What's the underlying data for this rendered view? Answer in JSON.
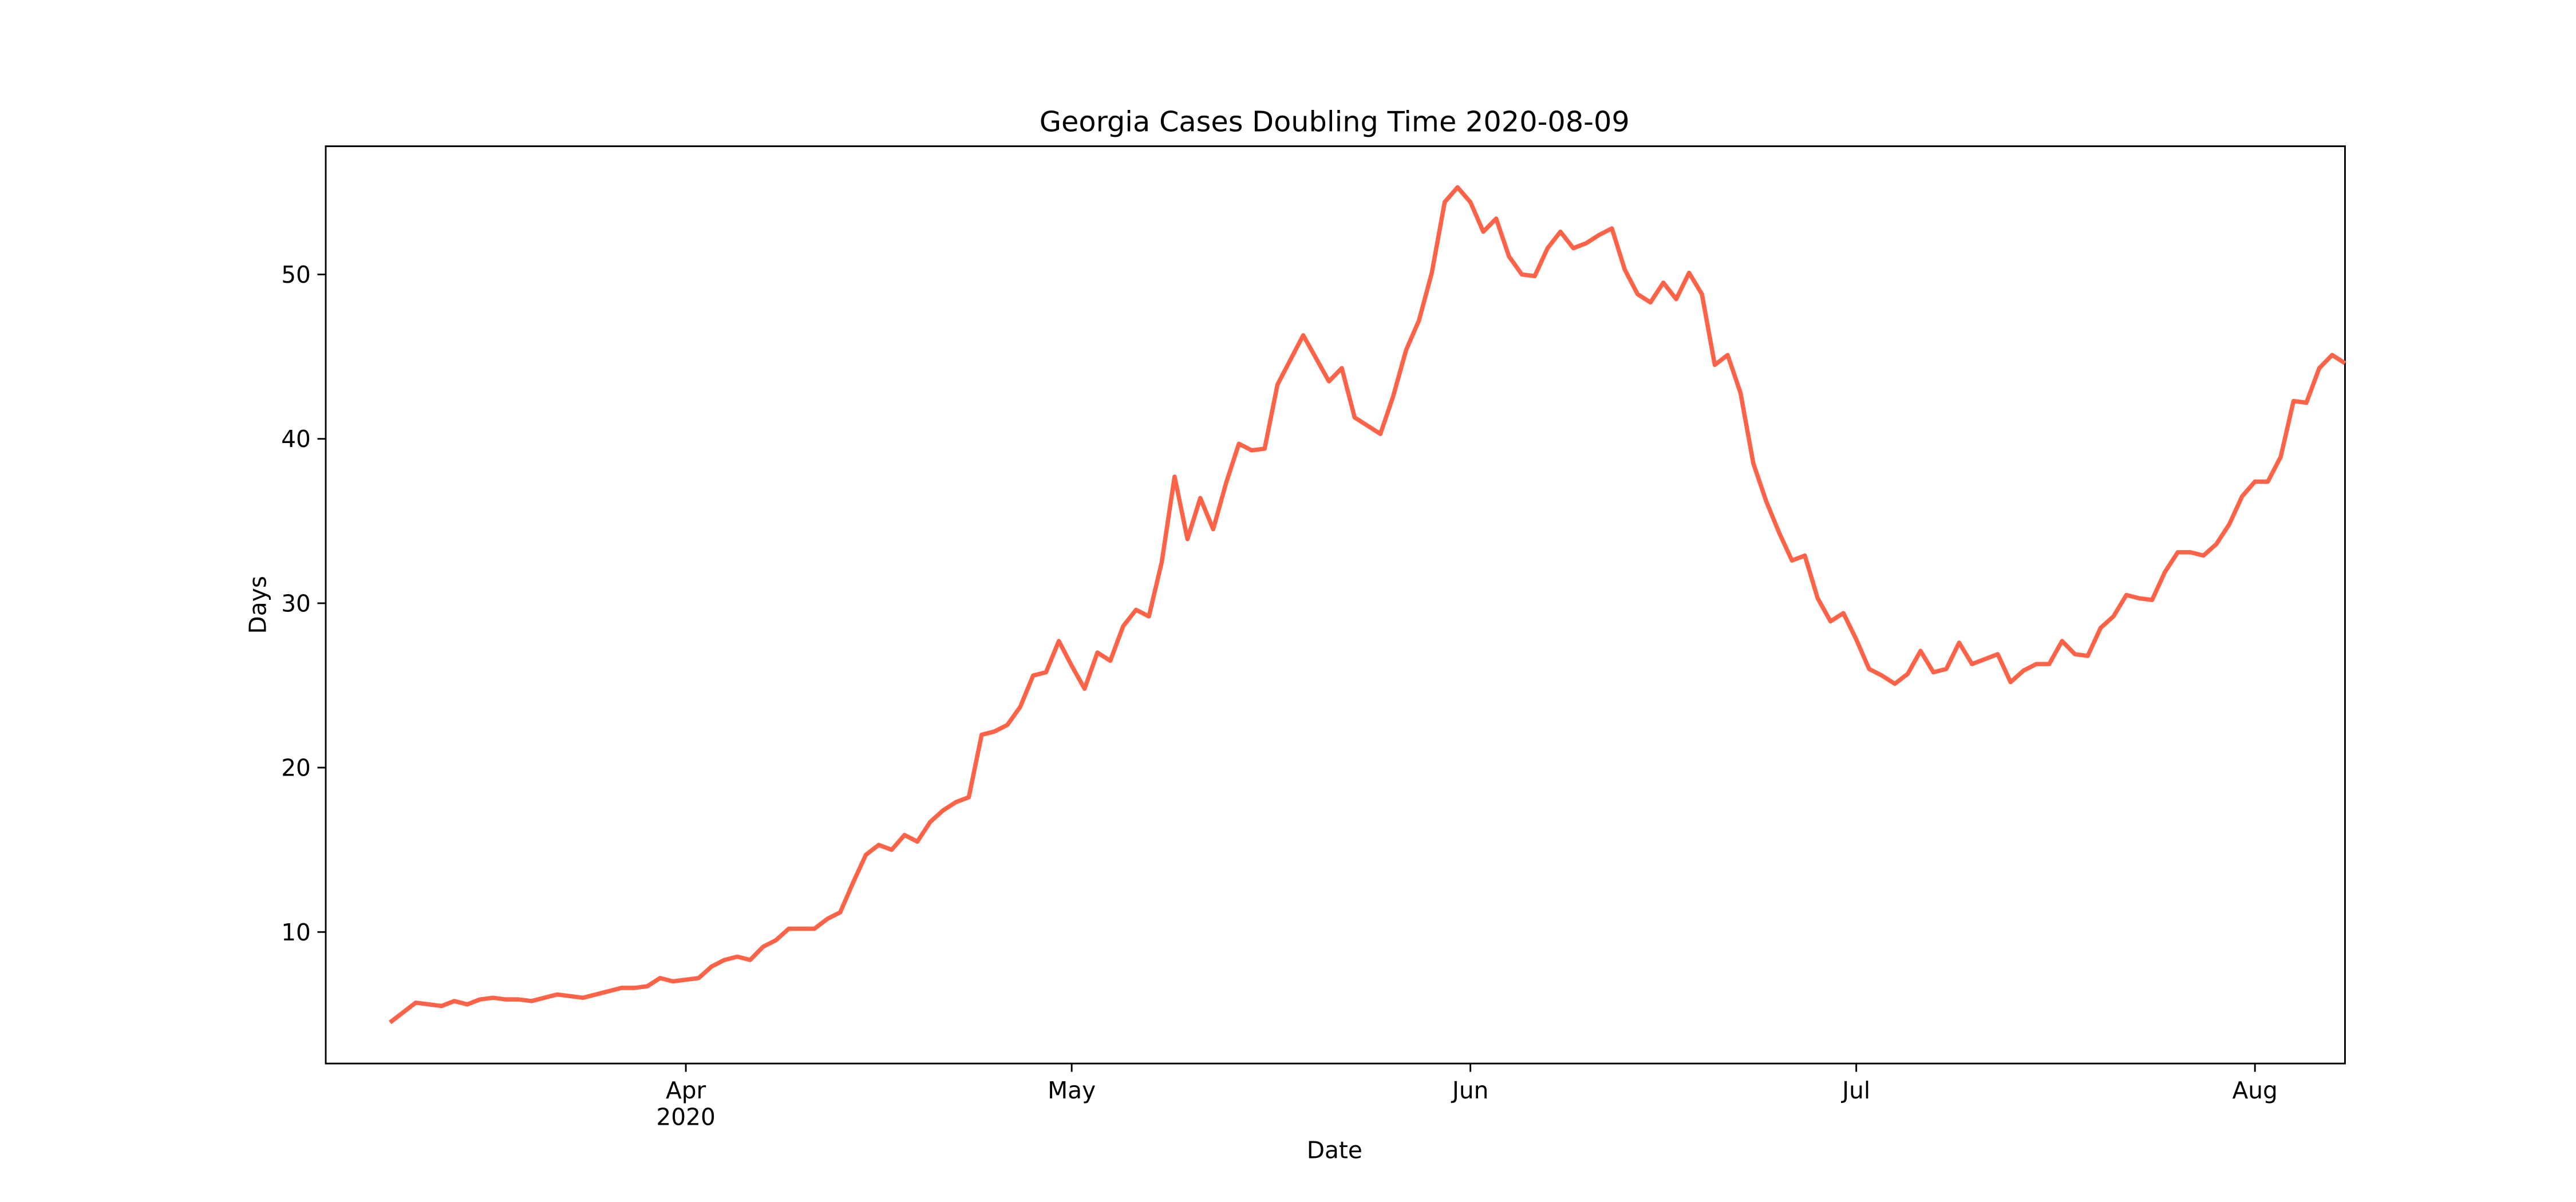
{
  "chart_data": {
    "type": "line",
    "title": "Georgia Cases Doubling Time 2020-08-09",
    "xlabel": "Date",
    "ylabel": "Days",
    "color": "tomato",
    "x": [
      "2020-03-09",
      "2020-03-10",
      "2020-03-11",
      "2020-03-12",
      "2020-03-13",
      "2020-03-14",
      "2020-03-15",
      "2020-03-16",
      "2020-03-17",
      "2020-03-18",
      "2020-03-19",
      "2020-03-20",
      "2020-03-21",
      "2020-03-22",
      "2020-03-23",
      "2020-03-24",
      "2020-03-25",
      "2020-03-26",
      "2020-03-27",
      "2020-03-28",
      "2020-03-29",
      "2020-03-30",
      "2020-03-31",
      "2020-04-01",
      "2020-04-02",
      "2020-04-03",
      "2020-04-04",
      "2020-04-05",
      "2020-04-06",
      "2020-04-07",
      "2020-04-08",
      "2020-04-09",
      "2020-04-10",
      "2020-04-11",
      "2020-04-12",
      "2020-04-13",
      "2020-04-14",
      "2020-04-15",
      "2020-04-16",
      "2020-04-17",
      "2020-04-18",
      "2020-04-19",
      "2020-04-20",
      "2020-04-21",
      "2020-04-22",
      "2020-04-23",
      "2020-04-24",
      "2020-04-25",
      "2020-04-26",
      "2020-04-27",
      "2020-04-28",
      "2020-04-29",
      "2020-04-30",
      "2020-05-01",
      "2020-05-02",
      "2020-05-03",
      "2020-05-04",
      "2020-05-05",
      "2020-05-06",
      "2020-05-07",
      "2020-05-08",
      "2020-05-09",
      "2020-05-10",
      "2020-05-11",
      "2020-05-12",
      "2020-05-13",
      "2020-05-14",
      "2020-05-15",
      "2020-05-16",
      "2020-05-17",
      "2020-05-18",
      "2020-05-19",
      "2020-05-20",
      "2020-05-21",
      "2020-05-22",
      "2020-05-23",
      "2020-05-24",
      "2020-05-25",
      "2020-05-26",
      "2020-05-27",
      "2020-05-28",
      "2020-05-29",
      "2020-05-30",
      "2020-05-31",
      "2020-06-01",
      "2020-06-02",
      "2020-06-03",
      "2020-06-04",
      "2020-06-05",
      "2020-06-06",
      "2020-06-07",
      "2020-06-08",
      "2020-06-09",
      "2020-06-10",
      "2020-06-11",
      "2020-06-12",
      "2020-06-13",
      "2020-06-14",
      "2020-06-15",
      "2020-06-16",
      "2020-06-17",
      "2020-06-18",
      "2020-06-19",
      "2020-06-20",
      "2020-06-21",
      "2020-06-22",
      "2020-06-23",
      "2020-06-24",
      "2020-06-25",
      "2020-06-26",
      "2020-06-27",
      "2020-06-28",
      "2020-06-29",
      "2020-06-30",
      "2020-07-01",
      "2020-07-02",
      "2020-07-03",
      "2020-07-04",
      "2020-07-05",
      "2020-07-06",
      "2020-07-07",
      "2020-07-08",
      "2020-07-09",
      "2020-07-10",
      "2020-07-11",
      "2020-07-12",
      "2020-07-13",
      "2020-07-14",
      "2020-07-15",
      "2020-07-16",
      "2020-07-17",
      "2020-07-18",
      "2020-07-19",
      "2020-07-20",
      "2020-07-21",
      "2020-07-22",
      "2020-07-23",
      "2020-07-24",
      "2020-07-25",
      "2020-07-26",
      "2020-07-27",
      "2020-07-28",
      "2020-07-29",
      "2020-07-30",
      "2020-07-31",
      "2020-08-01",
      "2020-08-02",
      "2020-08-03",
      "2020-08-04",
      "2020-08-05",
      "2020-08-06",
      "2020-08-07",
      "2020-08-08"
    ],
    "values": [
      4.5,
      5.1,
      5.7,
      5.6,
      5.5,
      5.8,
      5.6,
      5.9,
      6.0,
      5.9,
      5.9,
      5.8,
      6.0,
      6.2,
      6.1,
      6.0,
      6.2,
      6.4,
      6.6,
      6.6,
      6.7,
      7.2,
      7.0,
      7.1,
      7.2,
      7.9,
      8.3,
      8.5,
      8.3,
      9.1,
      9.5,
      10.2,
      10.2,
      10.2,
      10.8,
      11.2,
      13.0,
      14.7,
      15.3,
      15.0,
      15.9,
      15.5,
      16.7,
      17.4,
      17.9,
      18.2,
      22.0,
      22.2,
      22.6,
      23.7,
      25.6,
      25.8,
      27.7,
      26.2,
      24.8,
      27.0,
      26.5,
      28.6,
      29.6,
      29.2,
      32.5,
      37.7,
      33.9,
      36.4,
      34.5,
      37.3,
      39.7,
      39.3,
      39.4,
      43.3,
      44.8,
      46.3,
      44.9,
      43.5,
      44.3,
      41.3,
      40.8,
      40.3,
      42.6,
      45.4,
      47.2,
      50.1,
      54.4,
      55.3,
      54.4,
      52.6,
      53.4,
      51.1,
      50.0,
      49.9,
      51.6,
      52.6,
      51.6,
      51.9,
      52.4,
      52.8,
      50.3,
      48.8,
      48.3,
      49.5,
      48.5,
      50.1,
      48.8,
      44.5,
      45.1,
      42.8,
      38.5,
      36.2,
      34.3,
      32.6,
      32.9,
      30.3,
      28.9,
      29.4,
      27.8,
      26.0,
      25.6,
      25.1,
      25.7,
      27.1,
      25.8,
      26.0,
      27.6,
      26.3,
      26.6,
      26.9,
      25.2,
      25.9,
      26.3,
      26.3,
      27.7,
      26.9,
      26.8,
      28.5,
      29.2,
      30.5,
      30.3,
      30.2,
      31.9,
      33.1,
      33.1,
      32.9,
      33.6,
      34.8,
      36.5,
      37.4,
      37.4,
      38.9,
      42.3,
      42.2,
      44.3,
      45.1,
      44.6
    ],
    "xlim": [
      "2020-03-04",
      "2020-08-08"
    ],
    "xticks": [
      {
        "value": "2020-04-01",
        "label": "Apr\n2020"
      },
      {
        "value": "2020-05-01",
        "label": "May"
      },
      {
        "value": "2020-06-01",
        "label": "Jun"
      },
      {
        "value": "2020-07-01",
        "label": "Jul"
      },
      {
        "value": "2020-08-01",
        "label": "Aug"
      }
    ],
    "ylim": [
      2.0,
      57.8
    ],
    "yticks": [
      10,
      20,
      30,
      40,
      50
    ]
  }
}
